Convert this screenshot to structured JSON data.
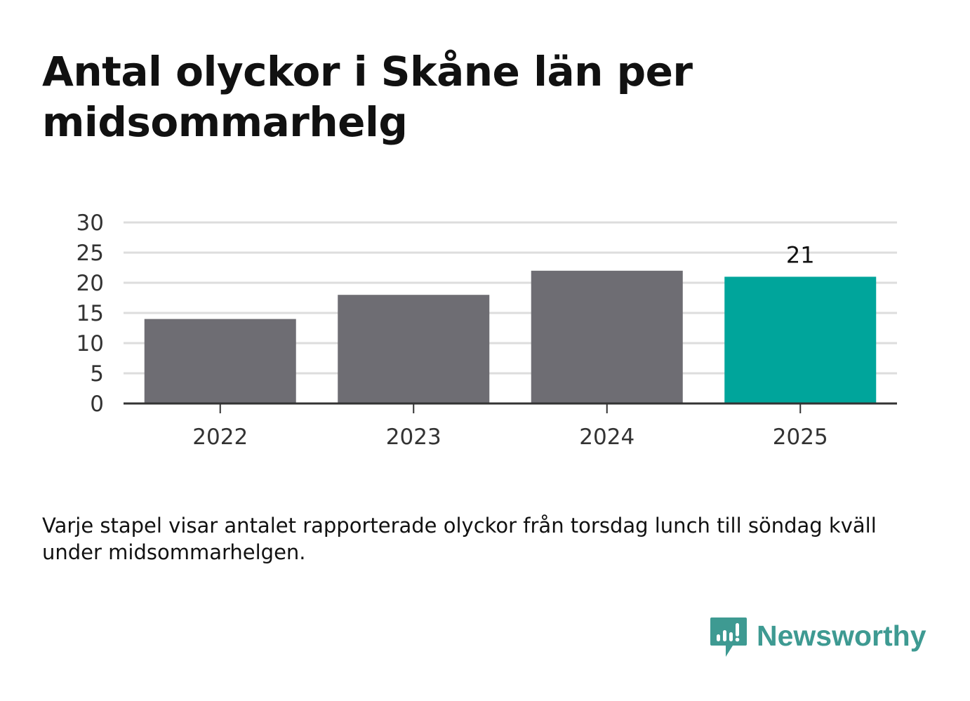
{
  "title": "Antal olyckor i Skåne län per midsommarhelg",
  "note": "Varje stapel visar antalet rapporterade olyckor från torsdag lunch till söndag kväll under midsommarhelgen.",
  "brand": {
    "name": "Newsworthy",
    "color": "#3e9a92"
  },
  "colors": {
    "bar": "#6e6d73",
    "highlight": "#00a59b",
    "grid": "#dddddd",
    "axis": "#333333"
  },
  "chart_data": {
    "type": "bar",
    "categories": [
      "2022",
      "2023",
      "2024",
      "2025"
    ],
    "values": [
      14,
      18,
      22,
      21
    ],
    "highlight_index": 3,
    "data_labels": [
      null,
      null,
      null,
      "21"
    ],
    "ylim": [
      0,
      30
    ],
    "yticks": [
      0,
      5,
      10,
      15,
      20,
      25,
      30
    ],
    "grid": true,
    "legend": "none"
  }
}
